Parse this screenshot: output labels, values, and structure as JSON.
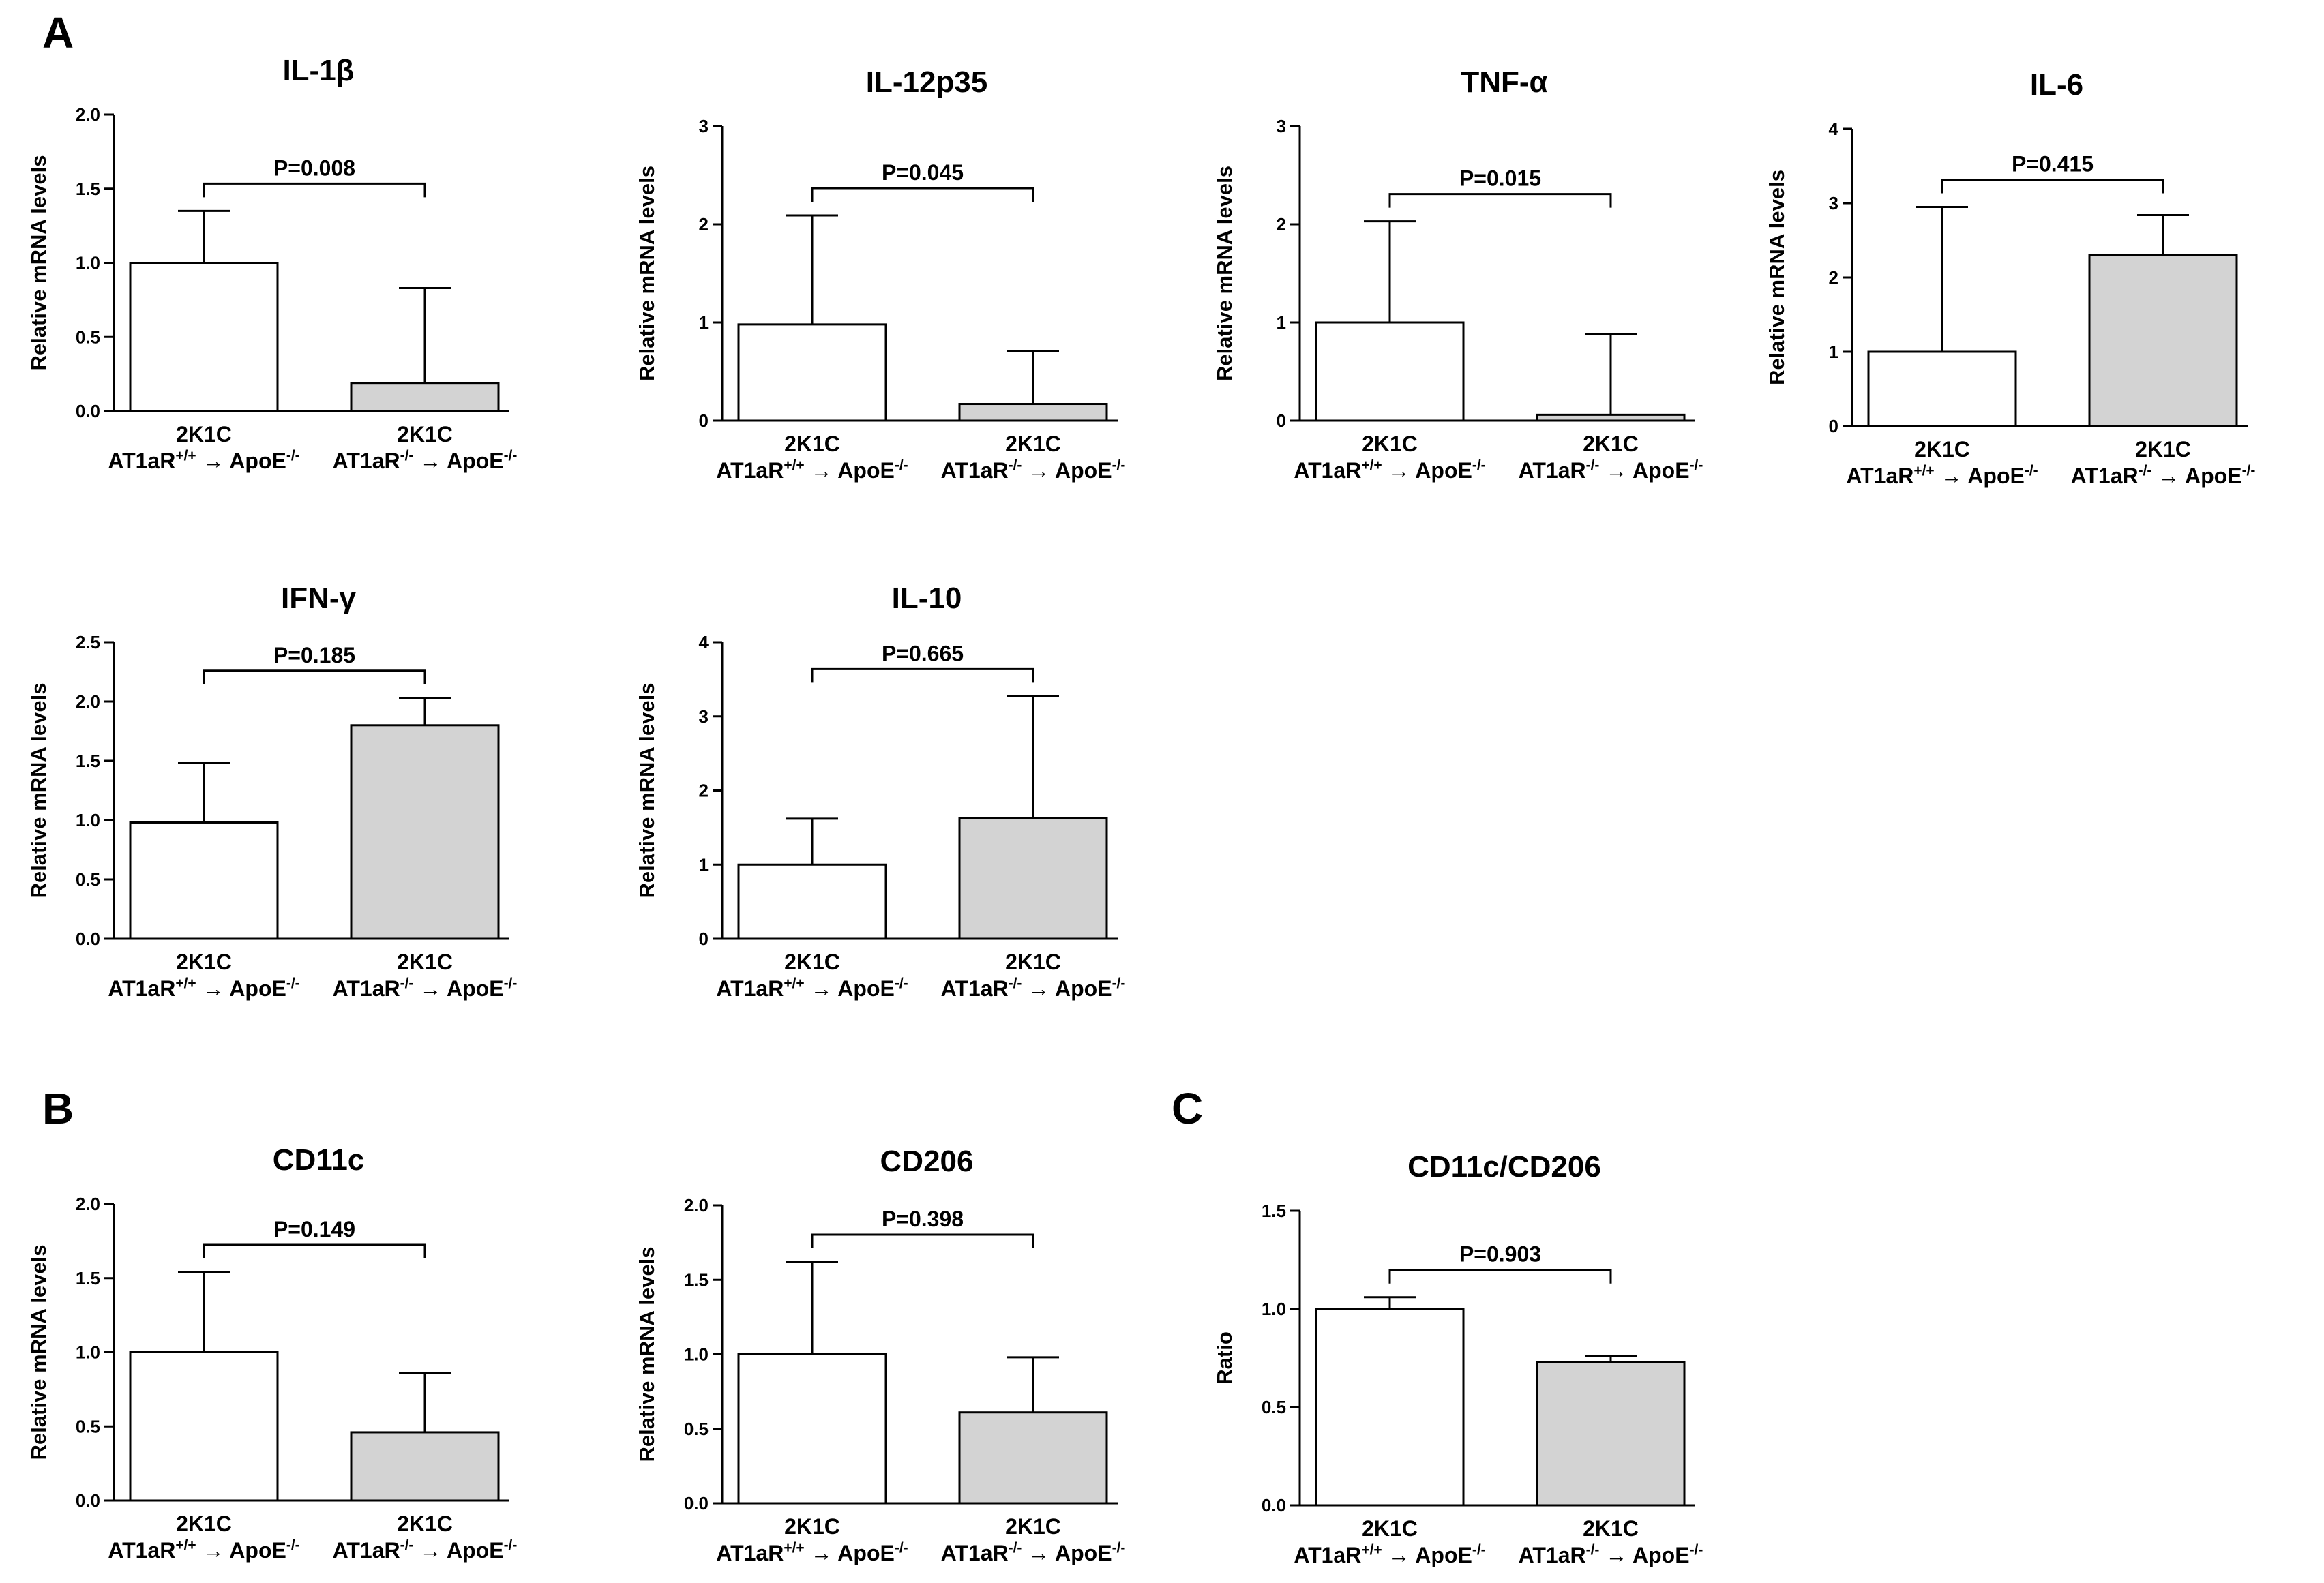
{
  "panel_labels": [
    {
      "text": "A",
      "panel": "A"
    },
    {
      "text": "B",
      "panel": "B"
    },
    {
      "text": "C",
      "panel": "C"
    }
  ],
  "category_text": {
    "top": "2K1C",
    "wt_prefix": "AT1aR",
    "wt_sup": "+/+",
    "ko_prefix": "AT1aR",
    "ko_sup": "-/-",
    "arrow": "→",
    "recipient": "ApoE",
    "recipient_sup": "-/-"
  },
  "colors": {
    "bar_wt": "#ffffff",
    "bar_ko": "#d3d3d3",
    "stroke": "#000000"
  },
  "chart_data": [
    {
      "type": "bar",
      "panel": "A",
      "title": "IL-1β",
      "ylabel": "Relative mRNA levels",
      "ylim": [
        0,
        2.0
      ],
      "yticks": [
        "0.0",
        "0.5",
        "1.0",
        "1.5",
        "2.0"
      ],
      "categories": [
        "2K1C AT1aR+/+ → ApoE-/-",
        "2K1C AT1aR-/- → ApoE-/-"
      ],
      "values": [
        1.0,
        0.19
      ],
      "error_upper": [
        1.35,
        0.83
      ],
      "pvalue": "P=0.008"
    },
    {
      "type": "bar",
      "panel": "A",
      "title": "IL-12p35",
      "ylabel": "Relative mRNA levels",
      "ylim": [
        0,
        3
      ],
      "yticks": [
        "0",
        "1",
        "2",
        "3"
      ],
      "categories": [
        "2K1C AT1aR+/+ → ApoE-/-",
        "2K1C AT1aR-/- → ApoE-/-"
      ],
      "values": [
        0.98,
        0.17
      ],
      "error_upper": [
        2.09,
        0.71
      ],
      "pvalue": "P=0.045"
    },
    {
      "type": "bar",
      "panel": "A",
      "title": "TNF-α",
      "ylabel": "Relative mRNA levels",
      "ylim": [
        0,
        3
      ],
      "yticks": [
        "0",
        "1",
        "2",
        "3"
      ],
      "categories": [
        "2K1C AT1aR+/+ → ApoE-/-",
        "2K1C AT1aR-/- → ApoE-/-"
      ],
      "values": [
        1.0,
        0.06
      ],
      "error_upper": [
        2.03,
        0.88
      ],
      "pvalue": "P=0.015"
    },
    {
      "type": "bar",
      "panel": "A",
      "title": "IL-6",
      "ylabel": "Relative mRNA levels",
      "ylim": [
        0,
        4
      ],
      "yticks": [
        "0",
        "1",
        "2",
        "3",
        "4"
      ],
      "categories": [
        "2K1C AT1aR+/+ → ApoE-/-",
        "2K1C AT1aR-/- → ApoE-/-"
      ],
      "values": [
        1.0,
        2.3
      ],
      "error_upper": [
        2.95,
        2.84
      ],
      "pvalue": "P=0.415"
    },
    {
      "type": "bar",
      "panel": "A",
      "title": "IFN-γ",
      "ylabel": "Relative mRNA levels",
      "ylim": [
        0,
        2.5
      ],
      "yticks": [
        "0.0",
        "0.5",
        "1.0",
        "1.5",
        "2.0",
        "2.5"
      ],
      "categories": [
        "2K1C AT1aR+/+ → ApoE-/-",
        "2K1C AT1aR-/- → ApoE-/-"
      ],
      "values": [
        0.98,
        1.8
      ],
      "error_upper": [
        1.48,
        2.03
      ],
      "pvalue": "P=0.185"
    },
    {
      "type": "bar",
      "panel": "A",
      "title": "IL-10",
      "ylabel": "Relative mRNA levels",
      "ylim": [
        0,
        4
      ],
      "yticks": [
        "0",
        "1",
        "2",
        "3",
        "4"
      ],
      "categories": [
        "2K1C AT1aR+/+ → ApoE-/-",
        "2K1C AT1aR-/- → ApoE-/-"
      ],
      "values": [
        1.0,
        1.63
      ],
      "error_upper": [
        1.62,
        3.27
      ],
      "pvalue": "P=0.665"
    },
    {
      "type": "bar",
      "panel": "B",
      "title": "CD11c",
      "ylabel": "Relative mRNA levels",
      "ylim": [
        0,
        2.0
      ],
      "yticks": [
        "0.0",
        "0.5",
        "1.0",
        "1.5",
        "2.0"
      ],
      "categories": [
        "2K1C AT1aR+/+ → ApoE-/-",
        "2K1C AT1aR-/- → ApoE-/-"
      ],
      "values": [
        1.0,
        0.46
      ],
      "error_upper": [
        1.54,
        0.86
      ],
      "pvalue": "P=0.149"
    },
    {
      "type": "bar",
      "panel": "B",
      "title": "CD206",
      "ylabel": "Relative mRNA levels",
      "ylim": [
        0,
        2.0
      ],
      "yticks": [
        "0.0",
        "0.5",
        "1.0",
        "1.5",
        "2.0"
      ],
      "categories": [
        "2K1C AT1aR+/+ → ApoE-/-",
        "2K1C AT1aR-/- → ApoE-/-"
      ],
      "values": [
        1.0,
        0.61
      ],
      "error_upper": [
        1.62,
        0.98
      ],
      "pvalue": "P=0.398"
    },
    {
      "type": "bar",
      "panel": "C",
      "title": "CD11c/CD206",
      "ylabel": "Ratio",
      "ylim": [
        0,
        1.5
      ],
      "yticks": [
        "0.0",
        "0.5",
        "1.0",
        "1.5"
      ],
      "categories": [
        "2K1C AT1aR+/+ → ApoE-/-",
        "2K1C AT1aR-/- → ApoE-/-"
      ],
      "values": [
        1.0,
        0.73
      ],
      "error_upper": [
        1.06,
        0.76
      ],
      "pvalue": "P=0.903"
    }
  ]
}
